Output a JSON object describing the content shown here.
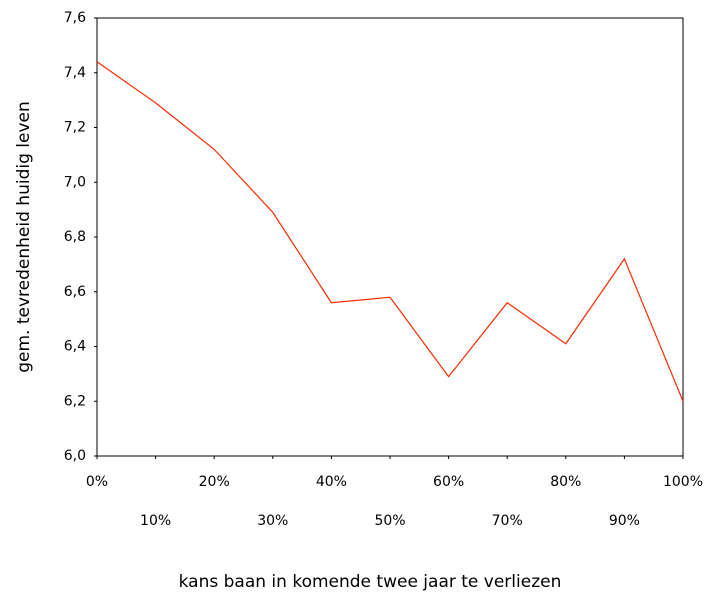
{
  "chart_data": {
    "type": "line",
    "x_label": "kans baan in komende twee jaar te verliezen",
    "y_label": "gem. tevredenheid huidig leven",
    "x": [
      0,
      10,
      20,
      30,
      40,
      50,
      60,
      70,
      80,
      90,
      100
    ],
    "series": [
      {
        "color": "#ff2a00",
        "values": [
          7.44,
          7.29,
          7.12,
          6.89,
          6.56,
          6.58,
          6.29,
          6.56,
          6.41,
          6.72,
          6.2
        ]
      }
    ],
    "xlim": [
      0,
      100
    ],
    "xticks": [
      {
        "value": 0,
        "label": "0%"
      },
      {
        "value": 10,
        "label": "10%"
      },
      {
        "value": 20,
        "label": "20%"
      },
      {
        "value": 30,
        "label": "30%"
      },
      {
        "value": 40,
        "label": "40%"
      },
      {
        "value": 50,
        "label": "50%"
      },
      {
        "value": 60,
        "label": "60%"
      },
      {
        "value": 70,
        "label": "70%"
      },
      {
        "value": 80,
        "label": "80%"
      },
      {
        "value": 90,
        "label": "90%"
      },
      {
        "value": 100,
        "label": "100%"
      }
    ],
    "ylim": [
      6.0,
      7.6
    ],
    "yticks": [
      {
        "value": 6.0,
        "label": "6,0"
      },
      {
        "value": 6.2,
        "label": "6,2"
      },
      {
        "value": 6.4,
        "label": "6,4"
      },
      {
        "value": 6.6,
        "label": "6,6"
      },
      {
        "value": 6.8,
        "label": "6,8"
      },
      {
        "value": 7.0,
        "label": "7,0"
      },
      {
        "value": 7.2,
        "label": "7,2"
      },
      {
        "value": 7.4,
        "label": "7,4"
      },
      {
        "value": 7.6,
        "label": "7,6"
      }
    ]
  }
}
